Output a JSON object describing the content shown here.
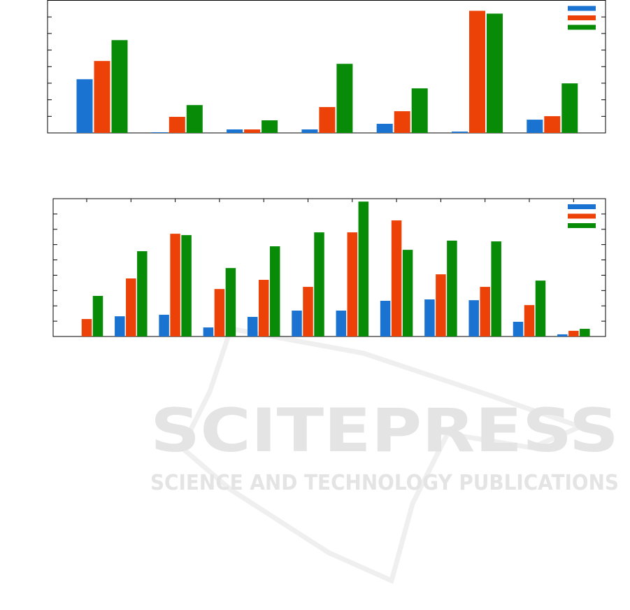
{
  "watermark": {
    "title": "SCITEPRESS",
    "subtitle": "SCIENCE AND TECHNOLOGY PUBLICATIONS"
  },
  "chart_data": [
    {
      "type": "bar",
      "categories": [
        null,
        null,
        null,
        null,
        null,
        null,
        null
      ],
      "series": [
        {
          "color": "#1a73d1",
          "values": [
            3.24,
            0.04,
            0.21,
            0.21,
            0.55,
            0.08,
            0.8
          ]
        },
        {
          "color": "#ec4208",
          "values": [
            4.34,
            0.97,
            0.21,
            1.56,
            1.31,
            7.37,
            1.01
          ]
        },
        {
          "color": "#088c08",
          "values": [
            5.6,
            1.68,
            0.76,
            4.17,
            2.69,
            7.2,
            2.99
          ]
        }
      ],
      "ylim": [
        0,
        8
      ],
      "yticks": [
        1,
        2,
        3,
        4,
        5,
        6,
        7
      ],
      "legend": "upper right"
    },
    {
      "type": "bar",
      "categories": [
        null,
        null,
        null,
        null,
        null,
        null,
        null,
        null,
        null,
        null,
        null,
        null
      ],
      "series": [
        {
          "color": "#1a73d1",
          "values": [
            0,
            1.32,
            1.42,
            0.59,
            1.28,
            1.69,
            1.69,
            2.33,
            2.42,
            2.37,
            0.96,
            0.14
          ]
        },
        {
          "color": "#ec4208",
          "values": [
            1.14,
            3.79,
            6.71,
            3.1,
            3.7,
            3.24,
            6.8,
            7.58,
            4.06,
            3.24,
            2.05,
            0.37
          ]
        },
        {
          "color": "#088c08",
          "values": [
            2.65,
            5.57,
            6.62,
            4.47,
            5.89,
            6.8,
            8.81,
            5.66,
            6.26,
            6.21,
            3.65,
            0.5
          ]
        }
      ],
      "ylim": [
        0,
        9
      ],
      "yticks": [
        1,
        2,
        3,
        4,
        5,
        6,
        7,
        8
      ],
      "legend": "upper right"
    }
  ]
}
